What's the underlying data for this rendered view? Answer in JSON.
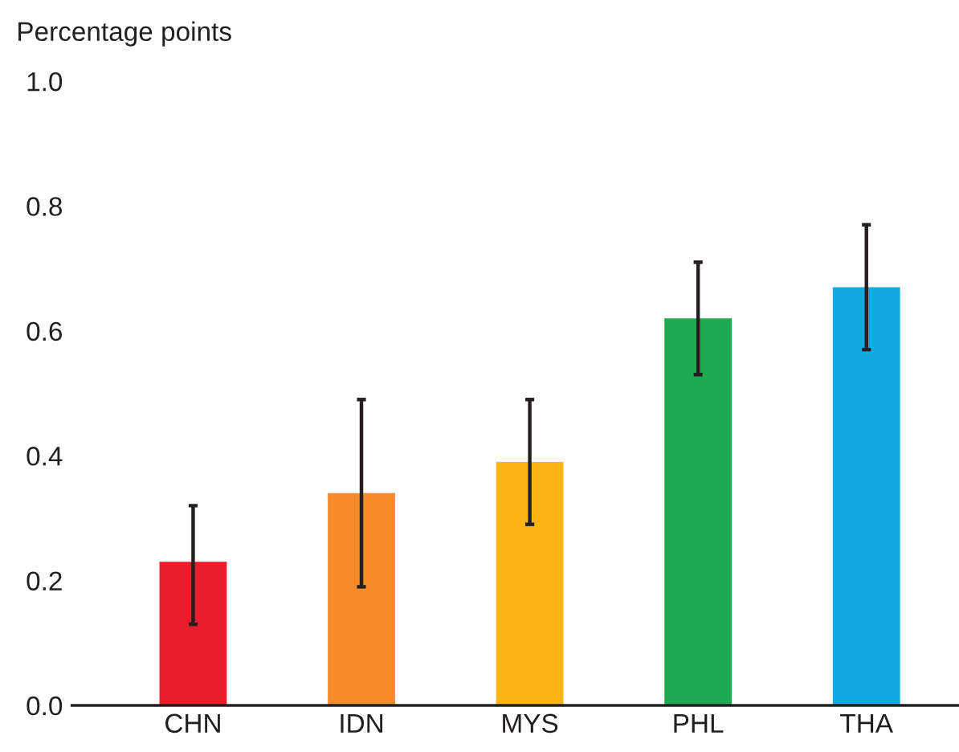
{
  "chart_data": {
    "type": "bar",
    "ylabel": "Percentage points",
    "categories": [
      "CHN",
      "IDN",
      "MYS",
      "PHL",
      "THA"
    ],
    "values": [
      0.23,
      0.34,
      0.39,
      0.62,
      0.67
    ],
    "errors": [
      [
        0.13,
        0.32
      ],
      [
        0.19,
        0.49
      ],
      [
        0.29,
        0.49
      ],
      [
        0.53,
        0.71
      ],
      [
        0.57,
        0.77
      ]
    ],
    "colors": [
      "#ea1d2d",
      "#f58b2a",
      "#fbb416",
      "#1daa50",
      "#16a8e0"
    ],
    "ylim": [
      0,
      1.0
    ],
    "yticks": [
      {
        "value": 0,
        "label": "0.0"
      },
      0.2,
      0.4,
      0.6,
      0.8,
      {
        "value": 1.0,
        "label": "1.0"
      }
    ],
    "grid": false
  }
}
